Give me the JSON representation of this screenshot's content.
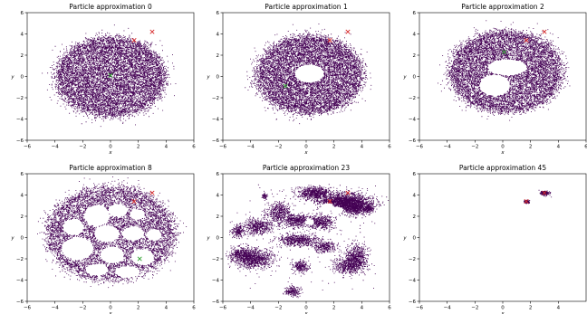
{
  "figure": {
    "background": "#ffffff"
  },
  "chart_data": [
    {
      "type": "scatter",
      "title": "Particle approximation 0",
      "xlabel": "x",
      "ylabel": "y",
      "xlim": [
        -6,
        6
      ],
      "ylim": [
        -6,
        6
      ],
      "xticks": [
        "−6",
        "−4",
        "−2",
        "0",
        "2",
        "4",
        "6"
      ],
      "yticks": [
        "−6",
        "−4",
        "−2",
        "0",
        "2",
        "4",
        "6"
      ],
      "particle_color": "#440154",
      "particle_distribution": "filled disc centred near (0, 0), radius about 3.3",
      "markers": [
        {
          "symbol": "x",
          "color": "#d62728",
          "x": 1.7,
          "y": 3.4
        },
        {
          "symbol": "x",
          "color": "#d62728",
          "x": 3.0,
          "y": 4.2
        },
        {
          "symbol": "x",
          "color": "#2ca02c",
          "x": 0.0,
          "y": 0.1
        }
      ]
    },
    {
      "type": "scatter",
      "title": "Particle approximation 1",
      "xlabel": "x",
      "ylabel": "y",
      "xlim": [
        -6,
        6
      ],
      "ylim": [
        -6,
        6
      ],
      "xticks": [
        "−6",
        "−4",
        "−2",
        "0",
        "2",
        "4",
        "6"
      ],
      "yticks": [
        "−6",
        "−4",
        "−2",
        "0",
        "2",
        "4",
        "6"
      ],
      "particle_color": "#440154",
      "particle_distribution": "annulus with an empty hole near (0.2, 0.3)",
      "markers": [
        {
          "symbol": "x",
          "color": "#d62728",
          "x": 1.7,
          "y": 3.4
        },
        {
          "symbol": "x",
          "color": "#d62728",
          "x": 3.0,
          "y": 4.2
        },
        {
          "symbol": "x",
          "color": "#2ca02c",
          "x": -1.5,
          "y": -0.9
        }
      ]
    },
    {
      "type": "scatter",
      "title": "Particle approximation 2",
      "xlabel": "x",
      "ylabel": "y",
      "xlim": [
        -6,
        6
      ],
      "ylim": [
        -6,
        6
      ],
      "xticks": [
        "−6",
        "−4",
        "−2",
        "0",
        "2",
        "4",
        "6"
      ],
      "yticks": [
        "−6",
        "−4",
        "−2",
        "0",
        "2",
        "4",
        "6"
      ],
      "particle_color": "#440154",
      "particle_distribution": "ring with two empty holes near (0.3, 0.9) and (-0.6, -0.8)",
      "markers": [
        {
          "symbol": "x",
          "color": "#d62728",
          "x": 1.7,
          "y": 3.4
        },
        {
          "symbol": "x",
          "color": "#d62728",
          "x": 3.0,
          "y": 4.2
        },
        {
          "symbol": "x",
          "color": "#2ca02c",
          "x": 0.1,
          "y": 2.3
        }
      ]
    },
    {
      "type": "scatter",
      "title": "Particle approximation 8",
      "xlabel": "x",
      "ylabel": "y",
      "xlim": [
        -6,
        6
      ],
      "ylim": [
        -6,
        6
      ],
      "xticks": [
        "−6",
        "−4",
        "−2",
        "0",
        "2",
        "4",
        "6"
      ],
      "yticks": [
        "−6",
        "−4",
        "−2",
        "0",
        "2",
        "4",
        "6"
      ],
      "particle_color": "#440154",
      "particle_distribution": "ring with many empty holes of varying size",
      "markers": [
        {
          "symbol": "x",
          "color": "#d62728",
          "x": 1.7,
          "y": 3.4
        },
        {
          "symbol": "x",
          "color": "#d62728",
          "x": 3.0,
          "y": 4.2
        },
        {
          "symbol": "x",
          "color": "#2ca02c",
          "x": 2.1,
          "y": -2.0
        }
      ]
    },
    {
      "type": "scatter",
      "title": "Particle approximation 23",
      "xlabel": "x",
      "ylabel": "y",
      "xlim": [
        -6,
        6
      ],
      "ylim": [
        -6,
        6
      ],
      "xticks": [
        "−6",
        "−4",
        "−2",
        "0",
        "2",
        "4",
        "6"
      ],
      "yticks": [
        "−6",
        "−4",
        "−2",
        "0",
        "2",
        "4",
        "6"
      ],
      "particle_color": "#440154",
      "particle_distribution": "fragmented clusters spread over the plane",
      "markers": [
        {
          "symbol": "x",
          "color": "#d62728",
          "x": 1.7,
          "y": 3.4
        },
        {
          "symbol": "x",
          "color": "#d62728",
          "x": 3.0,
          "y": 4.2
        }
      ]
    },
    {
      "type": "scatter",
      "title": "Particle approximation 45",
      "xlabel": "x",
      "ylabel": "y",
      "xlim": [
        -6,
        6
      ],
      "ylim": [
        -6,
        6
      ],
      "xticks": [
        "−6",
        "−4",
        "−2",
        "0",
        "2",
        "4"
      ],
      "yticks": [
        "−6",
        "−4",
        "−2",
        "0",
        "2",
        "4",
        "6"
      ],
      "particle_color": "#440154",
      "particle_distribution": "two small tight clusters at the red markers",
      "markers": [
        {
          "symbol": "x",
          "color": "#d62728",
          "x": 1.7,
          "y": 3.4
        },
        {
          "symbol": "x",
          "color": "#d62728",
          "x": 3.0,
          "y": 4.2
        }
      ]
    }
  ]
}
